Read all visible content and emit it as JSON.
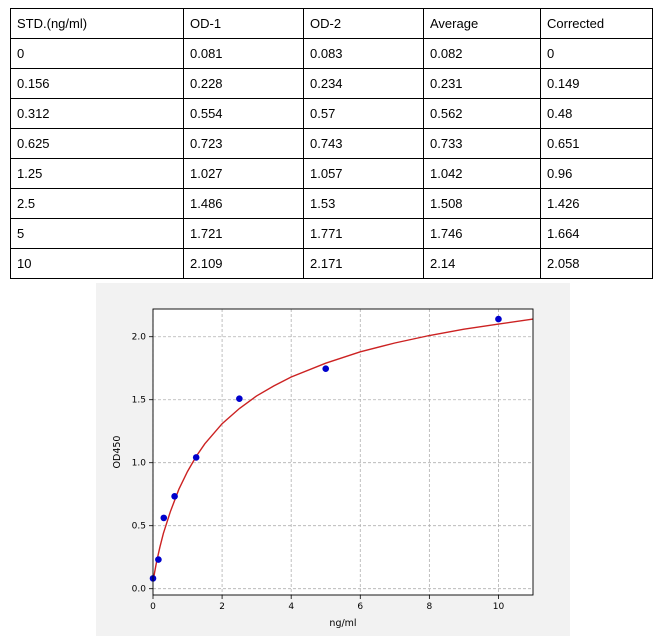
{
  "table": {
    "headers": [
      "STD.(ng/ml)",
      "OD-1",
      "OD-2",
      "Average",
      "Corrected"
    ],
    "rows": [
      [
        "0",
        "0.081",
        "0.083",
        "0.082",
        "0"
      ],
      [
        "0.156",
        "0.228",
        "0.234",
        "0.231",
        "0.149"
      ],
      [
        "0.312",
        "0.554",
        "0.57",
        "0.562",
        "0.48"
      ],
      [
        "0.625",
        "0.723",
        "0.743",
        "0.733",
        "0.651"
      ],
      [
        "1.25",
        "1.027",
        "1.057",
        "1.042",
        "0.96"
      ],
      [
        "2.5",
        "1.486",
        "1.53",
        "1.508",
        "1.426"
      ],
      [
        "5",
        "1.721",
        "1.771",
        "1.746",
        "1.664"
      ],
      [
        "10",
        "2.109",
        "2.171",
        "2.14",
        "2.058"
      ]
    ]
  },
  "chart_data": {
    "type": "scatter",
    "title": "",
    "xlabel": "ng/ml",
    "ylabel": "OD450",
    "xlim": [
      0,
      11
    ],
    "ylim": [
      -0.05,
      2.22
    ],
    "xticks": [
      "0",
      "2",
      "4",
      "6",
      "8",
      "10"
    ],
    "xtick_values": [
      0,
      2,
      4,
      6,
      8,
      10
    ],
    "yticks": [
      "0.0",
      "0.5",
      "1.0",
      "1.5",
      "2.0"
    ],
    "ytick_values": [
      0,
      0.5,
      1.0,
      1.5,
      2.0
    ],
    "grid": true,
    "series": [
      {
        "type": "scatter",
        "color": "#0000cc",
        "x": [
          0,
          0.156,
          0.312,
          0.625,
          1.25,
          2.5,
          5,
          10
        ],
        "y": [
          0.082,
          0.231,
          0.562,
          0.733,
          1.042,
          1.508,
          1.746,
          2.14
        ]
      },
      {
        "type": "line",
        "color": "#cc2222",
        "x": [
          0,
          0.1,
          0.2,
          0.3,
          0.5,
          0.75,
          1,
          1.25,
          1.5,
          2,
          2.5,
          3,
          3.5,
          4,
          5,
          6,
          7,
          8,
          9,
          10,
          11
        ],
        "y": [
          0.06,
          0.21,
          0.33,
          0.44,
          0.61,
          0.79,
          0.93,
          1.05,
          1.15,
          1.31,
          1.43,
          1.53,
          1.61,
          1.68,
          1.79,
          1.88,
          1.95,
          2.01,
          2.06,
          2.1,
          2.14
        ]
      }
    ]
  }
}
